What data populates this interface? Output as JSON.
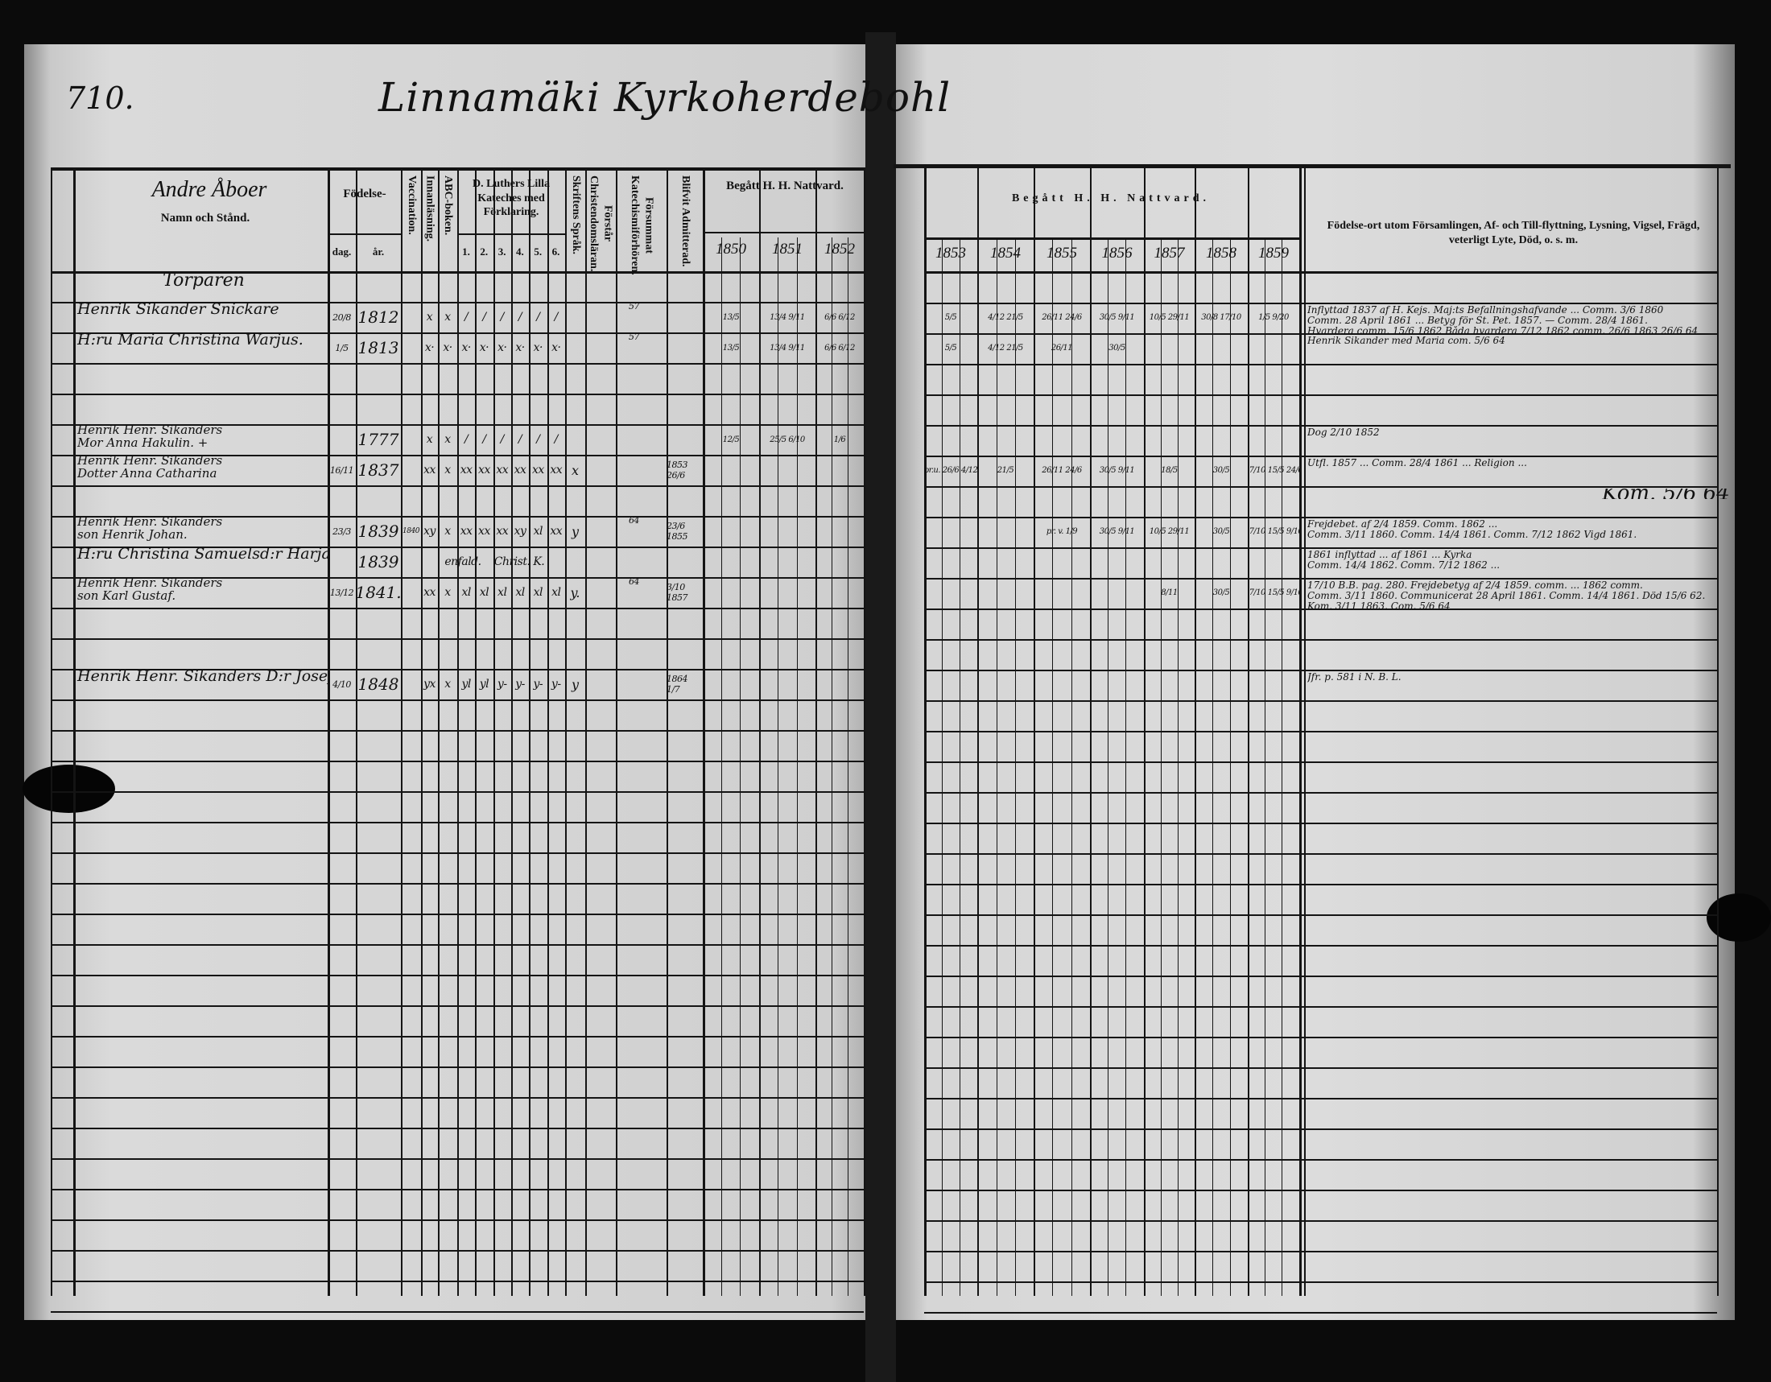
{
  "page_number": "710.",
  "title": "Linnamäki Kyrkoherdebohl",
  "header": {
    "section_heading": "Andre Åboer",
    "name_column": "Namn och Stånd.",
    "birth": "Födelse-",
    "birth_day": "dag.",
    "birth_year": "år.",
    "vaccination": "Vaccination.",
    "reading": "Innanläsning.",
    "abc": "ABC-boken.",
    "catechism": "D. Luthers Lilla Kateches med Förklaring.",
    "catechism_parts": [
      "1.",
      "2.",
      "3.",
      "4.",
      "5.",
      "6."
    ],
    "scripture": "Skriftens Språk.",
    "doctrine": "Förstår Christendomsläran.",
    "missed": "Försummat Katechismiförhören.",
    "admitted": "Blifvit Admitterad.",
    "communion_left": "Begått H. H. Nattvard.",
    "years_left": [
      "1850",
      "1851",
      "1852"
    ],
    "communion_right": "Begått H. H. Nattvard.",
    "years_right": [
      "1853",
      "1854",
      "1855",
      "1856",
      "1857",
      "1858",
      "1859"
    ],
    "remarks": "Födelse-ort utom Församlingen, Af- och Till-flyttning, Lysning, Vigsel, Frägd, veterligt Lyte, Död, o. s. m."
  },
  "rows": [
    {
      "name": [
        "Torparen"
      ],
      "heading": true
    },
    {
      "name": [
        "Henrik Sikander Snickare"
      ],
      "day": "20/8",
      "year": "1812",
      "vacc": "",
      "marks": [
        "x",
        "x",
        "/",
        "/",
        "/",
        "/",
        "/",
        "/"
      ],
      "scripture": "",
      "doctrine": "",
      "missed": "57",
      "admitted": "",
      "communion": {
        "1850": "13/5",
        "1851": "13/4 9/11",
        "1852": "6/6 6/12",
        "1853": "5/5",
        "1854": "4/12 21/5",
        "1855": "26/11 24/6",
        "1856": "30/5 9/11",
        "1857": "10/5 29/11",
        "1858": "30/8 17/10",
        "1859": "1/5 9/20"
      },
      "remarks": [
        "Inflyttad 1837 af H. Kejs. Maj:ts Befallningshafvande ... Comm. 3/6 1860",
        "Comm. 28 April 1861 ... Betyg för St. Pet. 1857. — Comm. 28/4 1861.",
        "Hvardera comm. 15/6 1862   Båda hvardera 7/12 1862  comm. 26/6 1863  26/6 64"
      ]
    },
    {
      "name": [
        "H:ru Maria Christina Warjus."
      ],
      "day": "1/5",
      "year": "1813",
      "vacc": "",
      "marks": [
        "x·",
        "x·",
        "x·",
        "x·",
        "x·",
        "x·",
        "x·",
        "x·"
      ],
      "scripture": "",
      "doctrine": "",
      "missed": "57",
      "admitted": "",
      "communion": {
        "1850": "13/5",
        "1851": "13/4 9/11",
        "1852": "6/6 6/12",
        "1853": "5/5",
        "1854": "4/12 21/5",
        "1855": "26/11",
        "1856": "30/5",
        "1858": "",
        "1859": ""
      },
      "remarks": [
        "Henrik Sikander med Maria com. 5/6 64"
      ]
    },
    {
      "name": [
        ""
      ]
    },
    {
      "name": [
        ""
      ]
    },
    {
      "name": [
        "Henrik Henr. Sikanders",
        "Mor Anna Hakulin. +"
      ],
      "day": "",
      "year": "1777",
      "vacc": "",
      "marks": [
        "x",
        "x",
        "/",
        "/",
        "/",
        "/",
        "/",
        "/"
      ],
      "scripture": "",
      "doctrine": "",
      "missed": "",
      "admitted": "",
      "communion": {
        "1850": "12/5",
        "1851": "25/5 6/10",
        "1852": "1/6"
      },
      "remarks": [
        "Dog 2/10 1852"
      ]
    },
    {
      "name": [
        "Henrik Henr. Sikanders",
        "Dotter Anna Catharina"
      ],
      "day": "16/11",
      "year": "1837",
      "vacc": "",
      "marks": [
        "xx",
        "x",
        "xx",
        "xx",
        "xx",
        "xx",
        "xx",
        "xx"
      ],
      "scripture": "x",
      "doctrine": "",
      "missed": "",
      "admitted": "1853 26/6",
      "communion": {
        "1853": "pr.u. 26/6 4/12",
        "1854": "21/5",
        "1855": "26/11 24/6",
        "1856": "30/5 9/11",
        "1857": "18/5",
        "1858": "30/5",
        "1859": "17/10 15/5 24/6"
      },
      "remarks": [
        "Utfl. 1857 ... Comm. 28/4 1861 ... Religion ..."
      ]
    },
    {
      "name": [
        ""
      ],
      "remarks": [
        "Kom. 5/6 64"
      ]
    },
    {
      "name": [
        "Henrik Henr. Sikanders",
        "son Henrik Johan."
      ],
      "day": "23/3",
      "year": "1839",
      "vacc": "1840",
      "marks": [
        "xy",
        "x",
        "xx",
        "xx",
        "xx",
        "xy",
        "xl",
        "xx"
      ],
      "scripture": "y",
      "doctrine": "",
      "missed": "64",
      "admitted": "23/6 1855",
      "communion": {
        "1855": "pr. v. 1/9",
        "1856": "30/5 9/11",
        "1857": "10/5 29/11",
        "1858": "30/5",
        "1859": "17/10 15/5 9/10"
      },
      "remarks": [
        "Frejdebet. af 2/4 1859. Comm. 1862 ...",
        "Comm. 3/11 1860. Comm. 14/4 1861. Comm. 7/12 1862   Vigd 1861."
      ]
    },
    {
      "name": [
        "H:ru Christina Samuelsd:r Harja."
      ],
      "day": "",
      "year": "1839",
      "vacc": "",
      "marks": [
        "enfald.",
        "Christ. K."
      ],
      "scripture": "",
      "doctrine": "",
      "missed": "",
      "admitted": "",
      "communion": {},
      "remarks": [
        "1861 inflyttad ... af 1861 ... Kyrka",
        "Comm. 14/4 1862. Comm. 7/12 1862 ..."
      ]
    },
    {
      "name": [
        "Henrik Henr. Sikanders",
        "son Karl Gustaf."
      ],
      "day": "13/12",
      "year": "1841.",
      "vacc": "",
      "marks": [
        "xx",
        "x",
        "xl",
        "xl",
        "xl",
        "xl",
        "xl",
        "xl"
      ],
      "scripture": "y.",
      "doctrine": "",
      "missed": "64",
      "admitted": "3/10 1857",
      "communion": {
        "1857": "8/11",
        "1858": "30/5",
        "1859": "17/10 15/5 9/10"
      },
      "remarks": [
        "17/10 B.B. pag. 280. Frejdebetyg af 2/4 1859. comm. ... 1862 comm.",
        "Comm. 3/11 1860. Communicerat 28 April 1861. Comm. 14/4 1861. Död 15/6 62.",
        "Kom. 3/11 1863.   Com. 5/6 64"
      ]
    },
    {
      "name": [
        ""
      ]
    },
    {
      "name": [
        ""
      ]
    },
    {
      "name": [
        "Henrik Henr. Sikanders D:r Josefina."
      ],
      "day": "4/10",
      "year": "1848",
      "vacc": "",
      "marks": [
        "yx",
        "x",
        "yl",
        "yl",
        "y-",
        "y-",
        "y-",
        "y-"
      ],
      "scripture": "y",
      "doctrine": "",
      "missed": "",
      "admitted": "1864 1/7",
      "communion": {},
      "remarks": [
        "Jfr. p. 581 i N. B. L."
      ]
    }
  ]
}
